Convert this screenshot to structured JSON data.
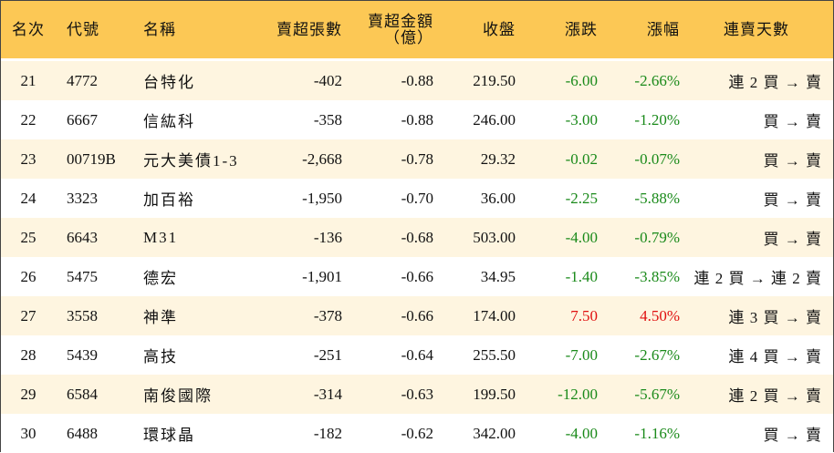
{
  "table": {
    "headers": {
      "rank": "名次",
      "code": "代號",
      "name": "名稱",
      "sell_volume": "賣超張數",
      "sell_amount_line1": "賣超金額",
      "sell_amount_line2": "（億）",
      "close": "收盤",
      "change": "漲跌",
      "change_pct": "漲幅",
      "days": "連賣天數"
    },
    "rows": [
      {
        "rank": "21",
        "code": "4772",
        "name": "台特化",
        "volume": "-402",
        "amount": "-0.88",
        "close": "219.50",
        "change": "-6.00",
        "pct": "-2.66%",
        "days": "連 2 買 → 賣"
      },
      {
        "rank": "22",
        "code": "6667",
        "name": "信紘科",
        "volume": "-358",
        "amount": "-0.88",
        "close": "246.00",
        "change": "-3.00",
        "pct": "-1.20%",
        "days": "買 → 賣"
      },
      {
        "rank": "23",
        "code": "00719B",
        "name": "元大美債1-3",
        "volume": "-2,668",
        "amount": "-0.78",
        "close": "29.32",
        "change": "-0.02",
        "pct": "-0.07%",
        "days": "買 → 賣"
      },
      {
        "rank": "24",
        "code": "3323",
        "name": "加百裕",
        "volume": "-1,950",
        "amount": "-0.70",
        "close": "36.00",
        "change": "-2.25",
        "pct": "-5.88%",
        "days": "買 → 賣"
      },
      {
        "rank": "25",
        "code": "6643",
        "name": "M31",
        "volume": "-136",
        "amount": "-0.68",
        "close": "503.00",
        "change": "-4.00",
        "pct": "-0.79%",
        "days": "買 → 賣"
      },
      {
        "rank": "26",
        "code": "5475",
        "name": "德宏",
        "volume": "-1,901",
        "amount": "-0.66",
        "close": "34.95",
        "change": "-1.40",
        "pct": "-3.85%",
        "days": "連 2 買 → 連 2 賣"
      },
      {
        "rank": "27",
        "code": "3558",
        "name": "神準",
        "volume": "-378",
        "amount": "-0.66",
        "close": "174.00",
        "change": "7.50",
        "pct": "4.50%",
        "days": "連 3 買 → 賣"
      },
      {
        "rank": "28",
        "code": "5439",
        "name": "高技",
        "volume": "-251",
        "amount": "-0.64",
        "close": "255.50",
        "change": "-7.00",
        "pct": "-2.67%",
        "days": "連 4 買 → 賣"
      },
      {
        "rank": "29",
        "code": "6584",
        "name": "南俊國際",
        "volume": "-314",
        "amount": "-0.63",
        "close": "199.50",
        "change": "-12.00",
        "pct": "-5.67%",
        "days": "連 2 買 → 賣"
      },
      {
        "rank": "30",
        "code": "6488",
        "name": "環球晶",
        "volume": "-182",
        "amount": "-0.62",
        "close": "342.00",
        "change": "-4.00",
        "pct": "-1.16%",
        "days": "買 → 賣"
      }
    ]
  },
  "colors": {
    "header_bg": "#fcc855",
    "odd_row_bg": "#fef5e0",
    "negative": "#1a8a1a",
    "positive": "#e01010"
  }
}
